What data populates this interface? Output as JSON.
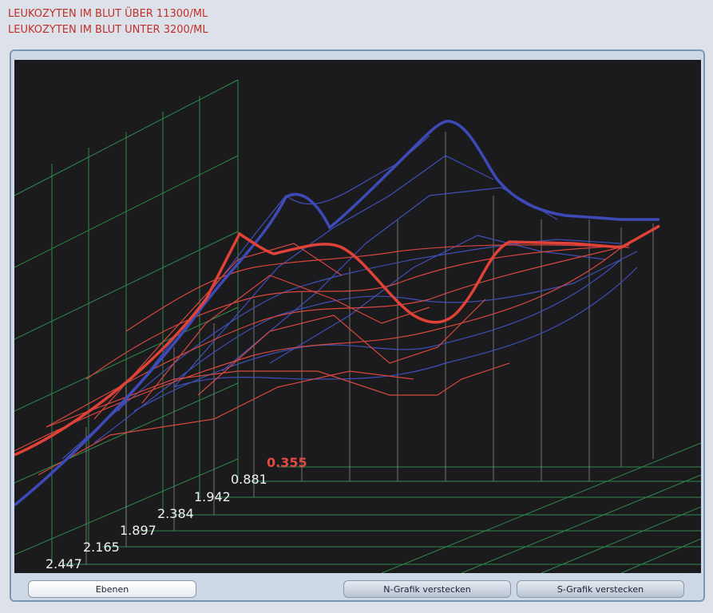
{
  "header": {
    "lines": [
      "LEUKOZYTEN IM BLUT ÜBER 11300/ML",
      "LEUKOZYTEN IM BLUT UNTER 3200/ML"
    ]
  },
  "plot": {
    "labels": [
      "0.355",
      "0.881",
      "1.942",
      "2.384",
      "1.897",
      "2.165",
      "2.447"
    ]
  },
  "buttons": [
    "Ebenen",
    "N-Grafik verstecken",
    "S-Grafik verstecken"
  ]
}
